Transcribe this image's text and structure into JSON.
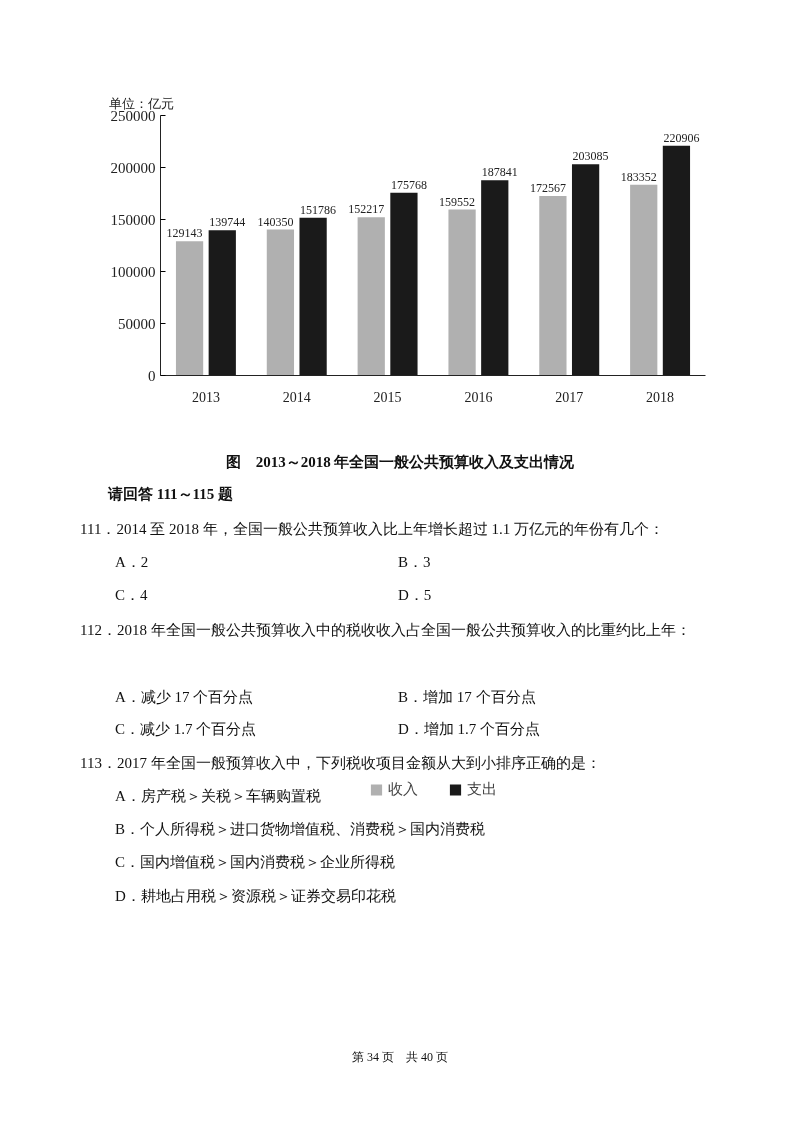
{
  "chart_data": {
    "type": "bar",
    "ylabel": "单位：亿元",
    "categories": [
      "2013",
      "2014",
      "2015",
      "2016",
      "2017",
      "2018"
    ],
    "series": [
      {
        "name": "收入",
        "color": "#b0b0b0",
        "values": [
          129143,
          140350,
          152217,
          159552,
          172567,
          183352
        ]
      },
      {
        "name": "支出",
        "color": "#1a1a1a",
        "values": [
          139744,
          151786,
          175768,
          187841,
          203085,
          220906
        ]
      }
    ],
    "ylim": [
      0,
      250000
    ],
    "yticks": [
      0,
      50000,
      100000,
      150000,
      200000,
      250000
    ],
    "data_labels": true,
    "legend": "bottom",
    "grid": false,
    "annotations": [
      "图　2013～2018 年全国一般公共预算收入及支出情况",
      "请回答 111～115 题",
      "111．2014 至 2018 年，全国一般公共预算收入比上年增长超过 1.1 万亿元的年份有几个：",
      "A．2",
      "B．3",
      "C．4",
      "D．5",
      "112．2018 年全国一般公共预算收入中的税收收入占全国一般公共预算收入的比重约比上年：",
      "A．减少 17 个百分点",
      "B．增加 17 个百分点",
      "C．减少 1.7 个百分点",
      "D．增加 1.7 个百分点",
      "113．2017 年全国一般预算收入中，下列税收项目金额从大到小排序正确的是：",
      "A．房产税＞关税＞车辆购置税",
      "B．个人所得税＞进口货物增值税、消费税＞国内消费税",
      "C．国内增值税＞国内消费税＞企业所得税",
      "D．耕地占用税＞资源税＞证券交易印花税",
      "第 34 页　共 40 页"
    ]
  }
}
